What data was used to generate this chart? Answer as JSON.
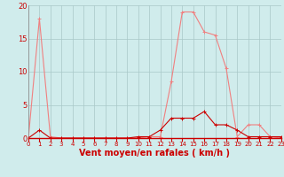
{
  "x": [
    0,
    1,
    2,
    3,
    4,
    5,
    6,
    7,
    8,
    9,
    10,
    11,
    12,
    13,
    14,
    15,
    16,
    17,
    18,
    19,
    20,
    21,
    22,
    23
  ],
  "line1_y": [
    0.0,
    18.0,
    0.2,
    0.0,
    0.0,
    0.0,
    0.0,
    0.0,
    0.0,
    0.0,
    0.0,
    0.2,
    0.2,
    8.5,
    19.0,
    19.0,
    16.0,
    15.5,
    10.5,
    0.2,
    2.0,
    2.0,
    0.2,
    0.0
  ],
  "line2_y": [
    0.0,
    1.2,
    0.0,
    0.0,
    0.0,
    0.0,
    0.0,
    0.0,
    0.0,
    0.0,
    0.2,
    0.2,
    1.2,
    3.0,
    3.0,
    3.0,
    4.0,
    2.0,
    2.0,
    1.2,
    0.2,
    0.2,
    0.2,
    0.2
  ],
  "line1_color": "#f08080",
  "line2_color": "#cc0000",
  "bg_color": "#d0ecec",
  "grid_color": "#a8c8c8",
  "xlabel": "Vent moyen/en rafales ( km/h )",
  "xlim": [
    0,
    23
  ],
  "ylim": [
    0,
    20
  ],
  "yticks": [
    0,
    5,
    10,
    15,
    20
  ],
  "xticks": [
    0,
    1,
    2,
    3,
    4,
    5,
    6,
    7,
    8,
    9,
    10,
    11,
    12,
    13,
    14,
    15,
    16,
    17,
    18,
    19,
    20,
    21,
    22,
    23
  ],
  "marker": "+",
  "marker_size": 3,
  "linewidth": 0.8,
  "tick_fontsize": 5,
  "xlabel_fontsize": 7
}
